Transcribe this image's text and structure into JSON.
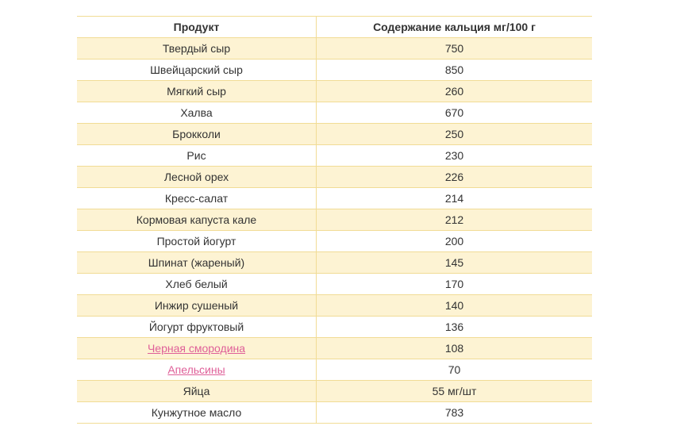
{
  "table": {
    "header": [
      "Продукт",
      "Содержание кальция мг/100 г"
    ],
    "rows": [
      [
        "Твердый сыр",
        750
      ],
      [
        "Швейцарский сыр",
        850
      ],
      [
        "Мягкий сыр",
        260
      ],
      [
        "Халва",
        670
      ],
      [
        "Брокколи",
        250
      ],
      [
        "Рис",
        230
      ],
      [
        "Лесной орех",
        226
      ],
      [
        "Кресс-салат",
        214
      ],
      [
        "Кормовая капуста кале",
        212
      ],
      [
        "Простой йогурт",
        200
      ],
      [
        "Шпинат (жареный)",
        145
      ],
      [
        "Хлеб белый",
        170
      ],
      [
        "Инжир сушеный",
        140
      ],
      [
        "Йогурт фруктовый",
        136
      ],
      [
        "Черная смородина",
        108
      ],
      [
        "Апельсины",
        70
      ],
      [
        "Яйца",
        "55 мг/шт"
      ],
      [
        "Кунжутное масло",
        783
      ]
    ]
  }
}
